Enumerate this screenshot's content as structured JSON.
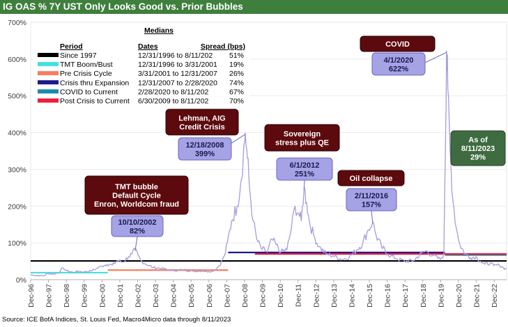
{
  "header": {
    "title": "IG OAS % 7Y UST Only Looks Good vs. Prior Bubbles"
  },
  "footer": {
    "source": "Source: ICE BofA Indices, St. Louis Fed, Macro4Micro    data through 8/11/2023"
  },
  "colors": {
    "series": "#a39ce0",
    "dark_box": "#5c0a0e",
    "green_box": "#3e6b40",
    "label_box": "#a5a2e6",
    "label_border": "#6a66c6"
  },
  "chart_data": {
    "type": "line",
    "title": "IG OAS % 7Y UST Only Looks Good vs. Prior Bubbles",
    "xlabel": "",
    "ylabel": "",
    "ylim": [
      0,
      700
    ],
    "xlim": [
      1996.92,
      2023.62
    ],
    "y_ticks": [
      "0%",
      "100%",
      "200%",
      "300%",
      "400%",
      "500%",
      "600%",
      "700%"
    ],
    "x_ticks": [
      "Dec-96",
      "Dec-97",
      "Dec-98",
      "Dec-99",
      "Dec-00",
      "Dec-01",
      "Dec-02",
      "Dec-03",
      "Dec-04",
      "Dec-05",
      "Dec-06",
      "Dec-07",
      "Dec-08",
      "Dec-09",
      "Dec-10",
      "Dec-11",
      "Dec-12",
      "Dec-13",
      "Dec-14",
      "Dec-15",
      "Dec-16",
      "Dec-17",
      "Dec-18",
      "Dec-19",
      "Dec-20",
      "Dec-21",
      "Dec-22"
    ],
    "series": [
      {
        "name": "IG OAS % 7Y UST",
        "points": [
          [
            1996.92,
            13
          ],
          [
            1997.3,
            11
          ],
          [
            1997.7,
            11
          ],
          [
            1997.85,
            17
          ],
          [
            1998.2,
            15
          ],
          [
            1998.5,
            20
          ],
          [
            1998.75,
            32
          ],
          [
            1998.95,
            24
          ],
          [
            1999.3,
            20
          ],
          [
            1999.6,
            23
          ],
          [
            1999.9,
            21
          ],
          [
            2000.3,
            24
          ],
          [
            2000.6,
            30
          ],
          [
            2000.9,
            37
          ],
          [
            2001.2,
            42
          ],
          [
            2001.5,
            40
          ],
          [
            2001.8,
            52
          ],
          [
            2002.1,
            48
          ],
          [
            2002.4,
            62
          ],
          [
            2002.6,
            70
          ],
          [
            2002.78,
            82
          ],
          [
            2002.95,
            65
          ],
          [
            2003.1,
            52
          ],
          [
            2003.4,
            42
          ],
          [
            2003.8,
            33
          ],
          [
            2004.2,
            31
          ],
          [
            2004.6,
            27
          ],
          [
            2005.0,
            25
          ],
          [
            2005.5,
            27
          ],
          [
            2006.0,
            23
          ],
          [
            2006.5,
            24
          ],
          [
            2006.9,
            22
          ],
          [
            2007.2,
            25
          ],
          [
            2007.5,
            38
          ],
          [
            2007.8,
            65
          ],
          [
            2007.95,
            100
          ],
          [
            2008.2,
            160
          ],
          [
            2008.5,
            200
          ],
          [
            2008.7,
            260
          ],
          [
            2008.85,
            340
          ],
          [
            2008.96,
            399
          ],
          [
            2009.08,
            330
          ],
          [
            2009.2,
            250
          ],
          [
            2009.4,
            160
          ],
          [
            2009.6,
            110
          ],
          [
            2009.85,
            85
          ],
          [
            2010.2,
            75
          ],
          [
            2010.45,
            110
          ],
          [
            2010.7,
            95
          ],
          [
            2010.95,
            75
          ],
          [
            2011.3,
            82
          ],
          [
            2011.55,
            140
          ],
          [
            2011.75,
            200
          ],
          [
            2011.95,
            180
          ],
          [
            2012.1,
            160
          ],
          [
            2012.26,
            251
          ],
          [
            2012.4,
            210
          ],
          [
            2012.55,
            160
          ],
          [
            2012.8,
            120
          ],
          [
            2013.1,
            90
          ],
          [
            2013.5,
            70
          ],
          [
            2013.9,
            65
          ],
          [
            2014.4,
            55
          ],
          [
            2014.8,
            62
          ],
          [
            2015.2,
            80
          ],
          [
            2015.55,
            100
          ],
          [
            2015.85,
            135
          ],
          [
            2016.11,
            157
          ],
          [
            2016.3,
            120
          ],
          [
            2016.6,
            90
          ],
          [
            2016.95,
            70
          ],
          [
            2017.4,
            58
          ],
          [
            2017.9,
            50
          ],
          [
            2018.4,
            52
          ],
          [
            2018.85,
            72
          ],
          [
            2019.1,
            78
          ],
          [
            2019.5,
            65
          ],
          [
            2019.9,
            55
          ],
          [
            2020.1,
            70
          ],
          [
            2020.15,
            250
          ],
          [
            2020.21,
            450
          ],
          [
            2020.25,
            622
          ],
          [
            2020.32,
            520
          ],
          [
            2020.45,
            350
          ],
          [
            2020.6,
            220
          ],
          [
            2020.8,
            140
          ],
          [
            2021.0,
            95
          ],
          [
            2021.3,
            70
          ],
          [
            2021.6,
            60
          ],
          [
            2021.9,
            62
          ],
          [
            2022.15,
            50
          ],
          [
            2022.4,
            42
          ],
          [
            2022.7,
            45
          ],
          [
            2022.9,
            38
          ],
          [
            2023.2,
            40
          ],
          [
            2023.45,
            32
          ],
          [
            2023.61,
            29
          ]
        ]
      }
    ],
    "medians_table": {
      "title": "Medians",
      "headers": [
        "Period",
        "Dates",
        "Spread (bps)"
      ],
      "rows": [
        {
          "period": "Since 1997",
          "dates": "12/31/1996 to 8/11/202",
          "spread": "51%",
          "color": "#000000",
          "value": 51,
          "x": [
            1996.92,
            2023.62
          ]
        },
        {
          "period": "TMT Boom/Bust",
          "dates": "12/31/1996 to 3/31/2001",
          "spread": "19%",
          "color": "#44e0e0",
          "value": 19,
          "x": [
            1996.92,
            2001.25
          ]
        },
        {
          "period": "Pre Crisis Cycle",
          "dates": "3/31/2001 to 12/31/2007",
          "spread": "26%",
          "color": "#f08060",
          "value": 26,
          "x": [
            2001.25,
            2008.0
          ]
        },
        {
          "period": "Crisis thru Expansion",
          "dates": "12/31/2007 to 2/28/2020",
          "spread": "74%",
          "color": "#1a1a8a",
          "value": 74,
          "x": [
            2008.0,
            2020.16
          ]
        },
        {
          "period": "COVID to Current",
          "dates": "2/28/2020 to 8/11/202",
          "spread": "67%",
          "color": "#1a8aaa",
          "value": 67,
          "x": [
            2020.16,
            2023.62
          ]
        },
        {
          "period": "Post Crisis to Current",
          "dates": "6/30/2009 to 8/11/202",
          "spread": "70%",
          "color": "#ee1c3a",
          "value": 70,
          "x": [
            2009.5,
            2023.62
          ]
        }
      ]
    },
    "annotations": [
      {
        "id": "tmt",
        "text": [
          "TMT bubble",
          "Default Cycle",
          "Enron, Worldcom fraud"
        ],
        "style": "dark",
        "pos": "upper-left"
      },
      {
        "id": "tmt-label",
        "text": [
          "10/10/2002",
          "82%"
        ],
        "style": "label",
        "target": [
          2002.78,
          82
        ]
      },
      {
        "id": "lehman",
        "text": [
          "Lehman, AIG",
          "Credit Crisis"
        ],
        "style": "dark",
        "pos": "upper-center"
      },
      {
        "id": "lehman-label",
        "text": [
          "12/18/2008",
          "399%"
        ],
        "style": "label",
        "target": [
          2008.96,
          399
        ]
      },
      {
        "id": "sovereign",
        "text": [
          "Sovereign",
          "stress plus QE"
        ],
        "style": "dark",
        "pos": "center"
      },
      {
        "id": "sovereign-label",
        "text": [
          "6/1/2012",
          "251%"
        ],
        "style": "label",
        "target": [
          2012.26,
          251
        ]
      },
      {
        "id": "oil",
        "text": [
          "Oil collapse"
        ],
        "style": "dark",
        "pos": "center-right"
      },
      {
        "id": "oil-label",
        "text": [
          "2/11/2016",
          "157%"
        ],
        "style": "label",
        "target": [
          2016.11,
          157
        ]
      },
      {
        "id": "covid",
        "text": [
          "COVID"
        ],
        "style": "dark",
        "pos": "top-right"
      },
      {
        "id": "covid-label",
        "text": [
          "4/1/2020",
          "622%"
        ],
        "style": "label",
        "target": [
          2020.25,
          622
        ]
      },
      {
        "id": "asof",
        "text": [
          "As of",
          "8/11/2023",
          "29%"
        ],
        "style": "green",
        "pos": "right"
      }
    ]
  }
}
